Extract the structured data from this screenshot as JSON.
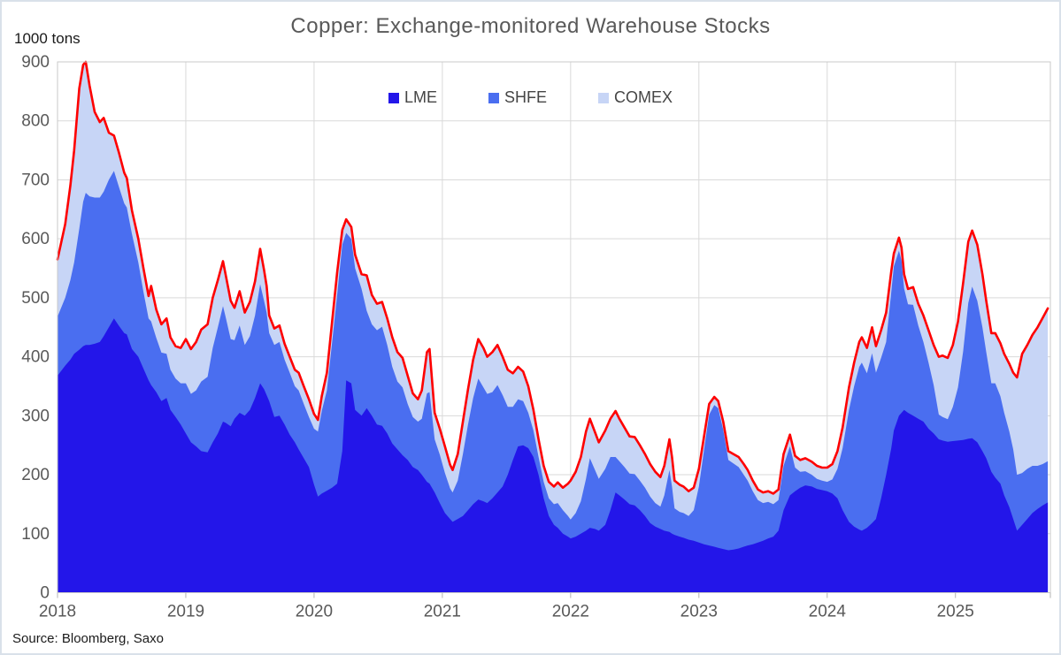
{
  "title": "Copper: Exchange-monitored Warehouse Stocks",
  "unit_label": "1000 tons",
  "source": "Source: Bloomberg, Saxo",
  "colors": {
    "lme": "#2316e9",
    "shfe": "#4a6ef0",
    "comex": "#c7d5f6",
    "total_line": "#fe0000",
    "grid": "#d9d9d9",
    "plot_border": "#c9c9c9",
    "tick": "#b3b3b3"
  },
  "legend": [
    {
      "label": "LME",
      "color": "#2316e9"
    },
    {
      "label": "SHFE",
      "color": "#4a6ef0"
    },
    {
      "label": "COMEX",
      "color": "#c7d5f6"
    }
  ],
  "axes": {
    "y_ticks": [
      0,
      100,
      200,
      300,
      400,
      500,
      600,
      700,
      800,
      900
    ],
    "x_ticks": [
      2018,
      2019,
      2020,
      2021,
      2022,
      2023,
      2024,
      2025
    ]
  },
  "chart_data": {
    "type": "area",
    "stacked": true,
    "title": "Copper: Exchange-monitored Warehouse Stocks",
    "ylabel": "1000 tons",
    "xlabel": "",
    "xlim": [
      2018,
      2025.74
    ],
    "ylim": [
      0,
      900
    ],
    "grid": true,
    "legend_position": "top-center",
    "series_names": [
      "LME",
      "SHFE",
      "COMEX"
    ],
    "total_line": "sum of stacked series (red)",
    "source": "Bloomberg, Saxo",
    "points_format": [
      "year_fraction",
      "LME",
      "SHFE",
      "COMEX"
    ],
    "points": [
      [
        2018.0,
        368,
        100,
        97
      ],
      [
        2018.06,
        385,
        115,
        125
      ],
      [
        2018.1,
        395,
        135,
        160
      ],
      [
        2018.13,
        405,
        155,
        190
      ],
      [
        2018.17,
        412,
        205,
        238
      ],
      [
        2018.2,
        418,
        245,
        232
      ],
      [
        2018.22,
        420,
        258,
        222
      ],
      [
        2018.25,
        420,
        252,
        188
      ],
      [
        2018.29,
        422,
        248,
        145
      ],
      [
        2018.33,
        425,
        245,
        128
      ],
      [
        2018.36,
        435,
        245,
        125
      ],
      [
        2018.4,
        450,
        250,
        80
      ],
      [
        2018.44,
        465,
        250,
        60
      ],
      [
        2018.48,
        452,
        235,
        58
      ],
      [
        2018.52,
        440,
        220,
        52
      ],
      [
        2018.54,
        438,
        215,
        50
      ],
      [
        2018.58,
        413,
        195,
        40
      ],
      [
        2018.63,
        400,
        160,
        40
      ],
      [
        2018.67,
        380,
        130,
        40
      ],
      [
        2018.71,
        360,
        105,
        38
      ],
      [
        2018.73,
        352,
        108,
        60
      ],
      [
        2018.77,
        340,
        92,
        48
      ],
      [
        2018.81,
        325,
        82,
        48
      ],
      [
        2018.85,
        330,
        75,
        60
      ],
      [
        2018.88,
        310,
        68,
        55
      ],
      [
        2018.92,
        298,
        65,
        55
      ],
      [
        2018.96,
        285,
        70,
        60
      ],
      [
        2019.0,
        270,
        85,
        75
      ],
      [
        2019.04,
        255,
        82,
        76
      ],
      [
        2019.08,
        248,
        95,
        82
      ],
      [
        2019.12,
        240,
        118,
        88
      ],
      [
        2019.17,
        238,
        128,
        89
      ],
      [
        2019.21,
        255,
        160,
        85
      ],
      [
        2019.25,
        270,
        180,
        80
      ],
      [
        2019.29,
        290,
        196,
        76
      ],
      [
        2019.31,
        288,
        180,
        72
      ],
      [
        2019.35,
        282,
        148,
        65
      ],
      [
        2019.38,
        295,
        133,
        55
      ],
      [
        2019.42,
        305,
        148,
        58
      ],
      [
        2019.46,
        300,
        120,
        55
      ],
      [
        2019.5,
        310,
        125,
        58
      ],
      [
        2019.54,
        330,
        140,
        58
      ],
      [
        2019.58,
        355,
        168,
        60
      ],
      [
        2019.61,
        345,
        150,
        52
      ],
      [
        2019.63,
        335,
        140,
        45
      ],
      [
        2019.65,
        325,
        115,
        30
      ],
      [
        2019.69,
        298,
        122,
        28
      ],
      [
        2019.73,
        300,
        125,
        28
      ],
      [
        2019.77,
        285,
        110,
        27
      ],
      [
        2019.81,
        268,
        105,
        27
      ],
      [
        2019.85,
        255,
        95,
        28
      ],
      [
        2019.88,
        243,
        100,
        30
      ],
      [
        2019.92,
        228,
        92,
        30
      ],
      [
        2019.96,
        213,
        85,
        30
      ],
      [
        2020.0,
        183,
        95,
        25
      ],
      [
        2020.03,
        163,
        110,
        20
      ],
      [
        2020.06,
        168,
        140,
        25
      ],
      [
        2020.1,
        173,
        170,
        30
      ],
      [
        2020.14,
        178,
        245,
        35
      ],
      [
        2020.18,
        185,
        320,
        38
      ],
      [
        2020.22,
        240,
        350,
        25
      ],
      [
        2020.25,
        360,
        250,
        23
      ],
      [
        2020.29,
        355,
        245,
        20
      ],
      [
        2020.32,
        310,
        240,
        23
      ],
      [
        2020.37,
        300,
        215,
        25
      ],
      [
        2020.41,
        313,
        165,
        60
      ],
      [
        2020.45,
        300,
        155,
        50
      ],
      [
        2020.49,
        285,
        160,
        45
      ],
      [
        2020.53,
        283,
        168,
        42
      ],
      [
        2020.57,
        270,
        150,
        45
      ],
      [
        2020.61,
        253,
        130,
        50
      ],
      [
        2020.65,
        243,
        115,
        50
      ],
      [
        2020.69,
        233,
        115,
        50
      ],
      [
        2020.73,
        225,
        95,
        48
      ],
      [
        2020.77,
        213,
        85,
        40
      ],
      [
        2020.81,
        208,
        82,
        38
      ],
      [
        2020.84,
        200,
        95,
        48
      ],
      [
        2020.88,
        188,
        150,
        70
      ],
      [
        2020.9,
        185,
        155,
        73
      ],
      [
        2020.94,
        170,
        90,
        45
      ],
      [
        2020.98,
        152,
        82,
        44
      ],
      [
        2021.02,
        135,
        68,
        45
      ],
      [
        2021.06,
        125,
        52,
        40
      ],
      [
        2021.08,
        120,
        50,
        38
      ],
      [
        2021.12,
        125,
        65,
        45
      ],
      [
        2021.16,
        130,
        105,
        55
      ],
      [
        2021.2,
        140,
        145,
        60
      ],
      [
        2021.24,
        150,
        180,
        65
      ],
      [
        2021.28,
        158,
        205,
        67
      ],
      [
        2021.32,
        155,
        193,
        67
      ],
      [
        2021.35,
        152,
        185,
        63
      ],
      [
        2021.39,
        160,
        180,
        68
      ],
      [
        2021.43,
        170,
        182,
        68
      ],
      [
        2021.47,
        180,
        155,
        65
      ],
      [
        2021.51,
        200,
        115,
        63
      ],
      [
        2021.55,
        225,
        90,
        57
      ],
      [
        2021.59,
        248,
        80,
        55
      ],
      [
        2021.63,
        250,
        75,
        50
      ],
      [
        2021.67,
        245,
        60,
        45
      ],
      [
        2021.71,
        230,
        45,
        35
      ],
      [
        2021.75,
        200,
        30,
        30
      ],
      [
        2021.79,
        160,
        28,
        27
      ],
      [
        2021.83,
        130,
        30,
        28
      ],
      [
        2021.87,
        115,
        35,
        30
      ],
      [
        2021.9,
        110,
        42,
        35
      ],
      [
        2021.94,
        100,
        40,
        38
      ],
      [
        2021.98,
        95,
        35,
        55
      ],
      [
        2022.0,
        92,
        32,
        66
      ],
      [
        2022.04,
        95,
        40,
        70
      ],
      [
        2022.08,
        100,
        55,
        75
      ],
      [
        2022.12,
        105,
        88,
        80
      ],
      [
        2022.15,
        110,
        118,
        67
      ],
      [
        2022.19,
        108,
        100,
        64
      ],
      [
        2022.22,
        105,
        88,
        62
      ],
      [
        2022.27,
        115,
        95,
        65
      ],
      [
        2022.31,
        140,
        90,
        65
      ],
      [
        2022.35,
        170,
        60,
        78
      ],
      [
        2022.38,
        165,
        58,
        72
      ],
      [
        2022.42,
        158,
        55,
        67
      ],
      [
        2022.46,
        150,
        52,
        63
      ],
      [
        2022.5,
        148,
        53,
        63
      ],
      [
        2022.54,
        140,
        50,
        60
      ],
      [
        2022.58,
        130,
        48,
        57
      ],
      [
        2022.62,
        118,
        45,
        55
      ],
      [
        2022.66,
        112,
        40,
        53
      ],
      [
        2022.7,
        108,
        38,
        50
      ],
      [
        2022.73,
        105,
        60,
        50
      ],
      [
        2022.77,
        103,
        105,
        52
      ],
      [
        2022.79,
        100,
        80,
        50
      ],
      [
        2022.81,
        98,
        45,
        47
      ],
      [
        2022.85,
        95,
        42,
        46
      ],
      [
        2022.88,
        93,
        42,
        45
      ],
      [
        2022.92,
        90,
        40,
        42
      ],
      [
        2022.96,
        88,
        52,
        38
      ],
      [
        2023.0,
        85,
        95,
        30
      ],
      [
        2023.04,
        82,
        160,
        23
      ],
      [
        2023.08,
        80,
        222,
        18
      ],
      [
        2023.12,
        78,
        240,
        14
      ],
      [
        2023.15,
        76,
        237,
        12
      ],
      [
        2023.19,
        74,
        202,
        14
      ],
      [
        2023.23,
        72,
        153,
        15
      ],
      [
        2023.27,
        73,
        146,
        16
      ],
      [
        2023.31,
        75,
        138,
        17
      ],
      [
        2023.35,
        78,
        122,
        18
      ],
      [
        2023.38,
        80,
        110,
        18
      ],
      [
        2023.42,
        82,
        90,
        18
      ],
      [
        2023.46,
        85,
        72,
        18
      ],
      [
        2023.5,
        88,
        64,
        18
      ],
      [
        2023.54,
        92,
        62,
        18
      ],
      [
        2023.58,
        95,
        55,
        18
      ],
      [
        2023.62,
        105,
        52,
        18
      ],
      [
        2023.66,
        140,
        75,
        20
      ],
      [
        2023.71,
        165,
        83,
        20
      ],
      [
        2023.75,
        172,
        40,
        20
      ],
      [
        2023.79,
        178,
        27,
        20
      ],
      [
        2023.83,
        182,
        24,
        22
      ],
      [
        2023.88,
        180,
        20,
        22
      ],
      [
        2023.92,
        176,
        17,
        22
      ],
      [
        2023.96,
        174,
        16,
        22
      ],
      [
        2024.0,
        172,
        16,
        24
      ],
      [
        2024.04,
        168,
        24,
        26
      ],
      [
        2024.08,
        160,
        50,
        30
      ],
      [
        2024.12,
        140,
        105,
        35
      ],
      [
        2024.17,
        120,
        190,
        38
      ],
      [
        2024.21,
        112,
        238,
        40
      ],
      [
        2024.25,
        107,
        276,
        42
      ],
      [
        2024.27,
        105,
        285,
        43
      ],
      [
        2024.31,
        110,
        262,
        43
      ],
      [
        2024.35,
        118,
        288,
        44
      ],
      [
        2024.38,
        125,
        248,
        45
      ],
      [
        2024.42,
        160,
        238,
        47
      ],
      [
        2024.46,
        200,
        225,
        50
      ],
      [
        2024.5,
        245,
        265,
        35
      ],
      [
        2024.52,
        275,
        278,
        22
      ],
      [
        2024.56,
        300,
        280,
        22
      ],
      [
        2024.58,
        305,
        258,
        22
      ],
      [
        2024.6,
        310,
        206,
        24
      ],
      [
        2024.63,
        305,
        184,
        26
      ],
      [
        2024.67,
        300,
        188,
        30
      ],
      [
        2024.71,
        295,
        158,
        37
      ],
      [
        2024.75,
        290,
        135,
        45
      ],
      [
        2024.79,
        278,
        112,
        55
      ],
      [
        2024.83,
        270,
        82,
        68
      ],
      [
        2024.87,
        260,
        42,
        98
      ],
      [
        2024.9,
        258,
        40,
        104
      ],
      [
        2024.94,
        256,
        38,
        104
      ],
      [
        2024.98,
        257,
        58,
        105
      ],
      [
        2025.02,
        258,
        90,
        112
      ],
      [
        2025.06,
        259,
        150,
        116
      ],
      [
        2025.1,
        261,
        230,
        104
      ],
      [
        2025.13,
        262,
        257,
        95
      ],
      [
        2025.17,
        255,
        240,
        95
      ],
      [
        2025.21,
        240,
        210,
        90
      ],
      [
        2025.24,
        228,
        180,
        87
      ],
      [
        2025.28,
        205,
        150,
        85
      ],
      [
        2025.31,
        195,
        160,
        85
      ],
      [
        2025.35,
        185,
        148,
        90
      ],
      [
        2025.38,
        165,
        140,
        100
      ],
      [
        2025.42,
        145,
        128,
        115
      ],
      [
        2025.45,
        125,
        118,
        130
      ],
      [
        2025.48,
        105,
        95,
        165
      ],
      [
        2025.52,
        115,
        88,
        202
      ],
      [
        2025.56,
        125,
        85,
        210
      ],
      [
        2025.6,
        135,
        80,
        222
      ],
      [
        2025.64,
        142,
        73,
        235
      ],
      [
        2025.68,
        148,
        70,
        248
      ],
      [
        2025.72,
        153,
        70,
        259
      ]
    ]
  }
}
